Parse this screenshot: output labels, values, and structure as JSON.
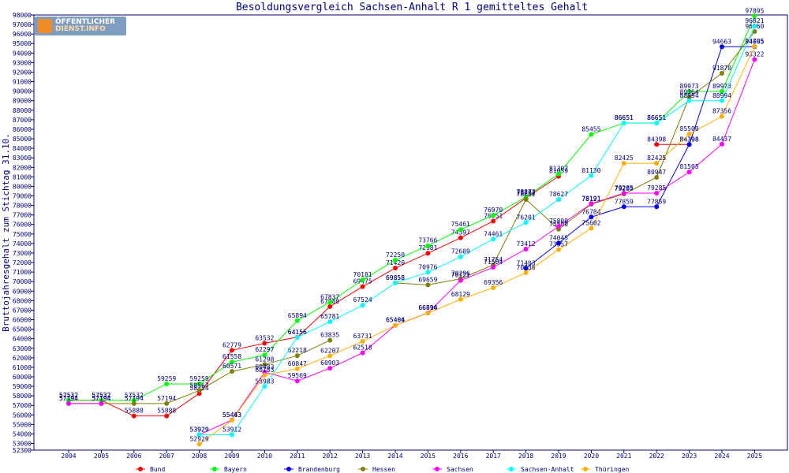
{
  "chart_data": {
    "type": "line",
    "title": "Besoldungsvergleich Sachsen-Anhalt R 1 gemitteltes Gehalt",
    "xlabel": "",
    "ylabel": "Bruttojahresgehalt zum Stichtag 31.10.",
    "x": [
      "2004",
      "2005",
      "2006",
      "2007",
      "2008",
      "2009",
      "2010",
      "2011",
      "2012",
      "2013",
      "2014",
      "2015",
      "2016",
      "2017",
      "2018",
      "2019",
      "2020",
      "2021",
      "2022",
      "2023",
      "2024",
      "2025"
    ],
    "ylim": [
      52300,
      98000
    ],
    "yticks": [
      52300,
      53000,
      54000,
      55000,
      56000,
      57000,
      58000,
      59000,
      60000,
      61000,
      62000,
      63000,
      64000,
      65000,
      66000,
      67000,
      68000,
      69000,
      70000,
      71000,
      72000,
      73000,
      74000,
      75000,
      76000,
      77000,
      78000,
      79000,
      80000,
      81000,
      82000,
      83000,
      84000,
      85000,
      86000,
      87000,
      88000,
      89000,
      90000,
      91000,
      92000,
      93000,
      94000,
      95000,
      96000,
      97000,
      98000
    ],
    "grid": false,
    "legend_position": "bottom",
    "series": [
      {
        "name": "Bund",
        "color": "#ff0000",
        "values": [
          57532,
          57532,
          55888,
          55888,
          58254,
          62779,
          63532,
          64156,
          67380,
          69475,
          71420,
          72981,
          74597,
          76351,
          78782,
          81059,
          null,
          null,
          84398,
          84398,
          null,
          null
        ]
      },
      {
        "name": "Bayern",
        "color": "#00ff00",
        "values": [
          57532,
          57532,
          57532,
          59259,
          59259,
          61558,
          62297,
          65894,
          67837,
          70181,
          72250,
          73766,
          75461,
          76970,
          78873,
          81307,
          85455,
          86651,
          86651,
          89973,
          89973,
          97895
        ]
      },
      {
        "name": "Brandenburg",
        "color": "#0000ff",
        "values": [
          null,
          null,
          null,
          null,
          null,
          null,
          null,
          null,
          null,
          null,
          null,
          null,
          null,
          null,
          71403,
          74045,
          76784,
          77859,
          77859,
          84398,
          94663,
          94665
        ]
      },
      {
        "name": "Hessen",
        "color": "#808000",
        "values": [
          57194,
          57194,
          57194,
          57194,
          58567,
          60571,
          61298,
          62218,
          63835,
          null,
          69858,
          69659,
          70296,
          71754,
          78632,
          75500,
          78121,
          79205,
          80947,
          89364,
          91870,
          96260
        ]
      },
      {
        "name": "Sachsen",
        "color": "#ff00ff",
        "values": [
          57194,
          57194,
          null,
          null,
          53929,
          55463,
          60483,
          59569,
          60903,
          62518,
          65404,
          66716,
          70121,
          71504,
          73412,
          75800,
          78191,
          79285,
          79285,
          81505,
          84437,
          93322
        ]
      },
      {
        "name": "Sachsen-Anhalt",
        "color": "#00ffff",
        "values": [
          null,
          null,
          null,
          null,
          53929,
          53912,
          58983,
          64156,
          65781,
          67524,
          69858,
          70976,
          72609,
          74461,
          76201,
          78627,
          81130,
          86651,
          86651,
          88994,
          88994,
          96821
        ]
      },
      {
        "name": "Thüringen",
        "color": "#ffb000",
        "values": [
          null,
          null,
          null,
          null,
          52929,
          55443,
          60183,
          60847,
          62207,
          63731,
          65406,
          66694,
          68129,
          69356,
          70936,
          73357,
          75602,
          82425,
          82425,
          85500,
          87356,
          94705
        ]
      }
    ],
    "legend_entries": [
      "Bund",
      "Bayern",
      "Brandenburg",
      "Hessen",
      "Sachsen",
      "Sachsen-Anhalt",
      "Thüringen"
    ],
    "watermark": {
      "line1": "ÖFFENTLICHER",
      "line2": "DIENST.INFO"
    }
  }
}
